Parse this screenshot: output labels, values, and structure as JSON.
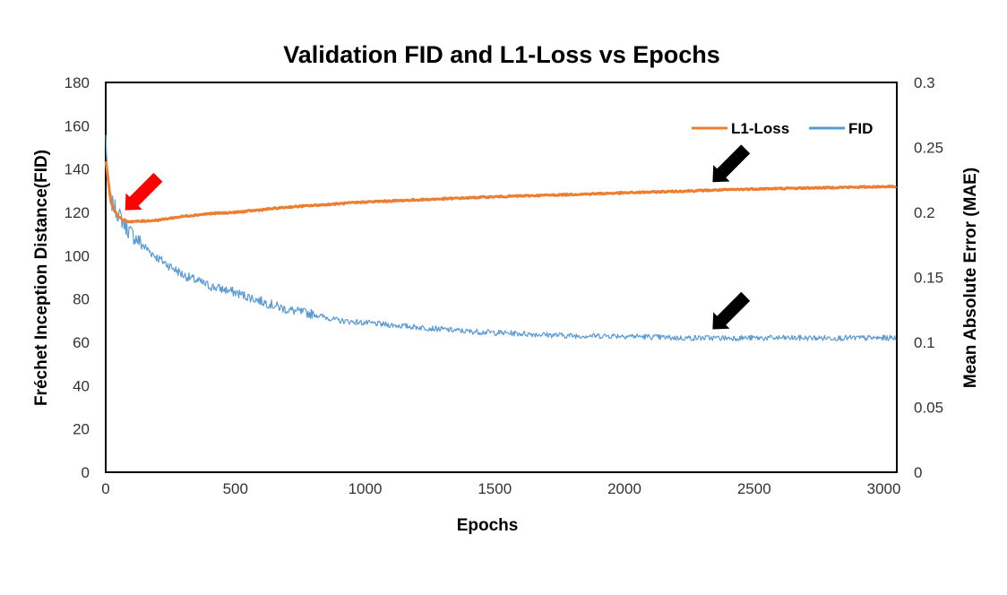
{
  "chart_data": {
    "type": "line",
    "title": "Validation FID and L1-Loss vs Epochs",
    "xlabel": "Epochs",
    "ylabel_left": "Fréchet Inception Distance(FID)",
    "ylabel_right": "Mean Absolute Error (MAE)",
    "xlim": [
      0,
      3050
    ],
    "ylim_left": [
      0,
      180
    ],
    "ylim_right": [
      0,
      0.3
    ],
    "x_ticks": [
      "0",
      "500",
      "1000",
      "1500",
      "2000",
      "2500",
      "3000"
    ],
    "y_ticks_left": [
      "0",
      "20",
      "40",
      "60",
      "80",
      "100",
      "120",
      "140",
      "160",
      "180"
    ],
    "y_ticks_right": [
      "0",
      "0.05",
      "0.1",
      "0.15",
      "0.2",
      "0.25",
      "0.3"
    ],
    "legend_position": "top-right",
    "grid": false,
    "series": [
      {
        "name": "L1-Loss",
        "axis": "right",
        "color": "#ED7D31",
        "x": [
          0,
          20,
          40,
          60,
          80,
          120,
          200,
          300,
          400,
          500,
          700,
          1000,
          1500,
          2000,
          2500,
          3050
        ],
        "y": [
          0.24,
          0.208,
          0.199,
          0.195,
          0.193,
          0.193,
          0.194,
          0.197,
          0.199,
          0.2,
          0.204,
          0.208,
          0.212,
          0.215,
          0.218,
          0.22
        ]
      },
      {
        "name": "FID",
        "axis": "left",
        "color": "#5B9BD5",
        "x": [
          0,
          10,
          20,
          40,
          60,
          80,
          100,
          150,
          200,
          300,
          400,
          500,
          600,
          700,
          800,
          900,
          1000,
          1200,
          1400,
          1600,
          1800,
          2000,
          2200,
          2400,
          2600,
          2800,
          3050
        ],
        "y": [
          155,
          132,
          125,
          121,
          117,
          113,
          110,
          104,
          99,
          91,
          86,
          83,
          79,
          75,
          73,
          70,
          69,
          67,
          65,
          64,
          63,
          63,
          62,
          62,
          62,
          62,
          62
        ]
      }
    ]
  },
  "annotations": [
    {
      "name": "red-arrow",
      "color": "#FF0000",
      "target_x": 75,
      "target_y_left": 121
    },
    {
      "name": "black-arrow-l1",
      "color": "#000000",
      "target_x": 2340,
      "target_y_left": 134
    },
    {
      "name": "black-arrow-fid",
      "color": "#000000",
      "target_x": 2340,
      "target_y_left": 66
    }
  ]
}
